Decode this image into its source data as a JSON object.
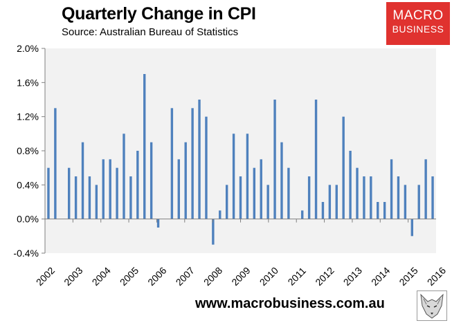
{
  "header": {
    "title": "Quarterly Change in CPI",
    "subtitle": "Source: Australian Bureau of Statistics"
  },
  "logo": {
    "line1": "MACRO",
    "line2": "BUSINESS"
  },
  "footer": {
    "website": "www.macrobusiness.com.au"
  },
  "colors": {
    "bar": "#4f81bd",
    "plot_background": "#f2f2f2",
    "axis": "#7f7f7f",
    "logo_red": "#e0322f"
  },
  "chart_data": {
    "type": "bar",
    "title": "Quarterly Change in CPI",
    "subtitle": "Source: Australian Bureau of Statistics",
    "xlabel": "",
    "ylabel": "",
    "ylim": [
      -0.4,
      2.0
    ],
    "yticks": [
      "-0.4%",
      "0.0%",
      "0.4%",
      "0.8%",
      "1.2%",
      "1.6%",
      "2.0%"
    ],
    "ytick_values": [
      -0.4,
      0.0,
      0.4,
      0.8,
      1.2,
      1.6,
      2.0
    ],
    "year_labels": [
      "2002",
      "2003",
      "2004",
      "2005",
      "2006",
      "2007",
      "2008",
      "2009",
      "2010",
      "2011",
      "2012",
      "2013",
      "2014",
      "2015",
      "2016"
    ],
    "series": [
      {
        "name": "Quarterly change in CPI (%)",
        "values": [
          0.6,
          1.3,
          0.0,
          0.6,
          0.5,
          0.9,
          0.5,
          0.4,
          0.7,
          0.7,
          0.6,
          1.0,
          0.5,
          0.8,
          1.7,
          0.9,
          -0.1,
          0.0,
          1.3,
          0.7,
          0.9,
          1.3,
          1.4,
          1.2,
          -0.3,
          0.1,
          0.4,
          1.0,
          0.5,
          1.0,
          0.6,
          0.7,
          0.4,
          1.4,
          0.9,
          0.6,
          0.0,
          0.1,
          0.5,
          1.4,
          0.2,
          0.4,
          0.4,
          1.2,
          0.8,
          0.6,
          0.5,
          0.5,
          0.2,
          0.2,
          0.7,
          0.5,
          0.4,
          -0.2,
          0.4,
          0.7,
          0.5
        ]
      }
    ],
    "grid": false,
    "legend": "none"
  }
}
